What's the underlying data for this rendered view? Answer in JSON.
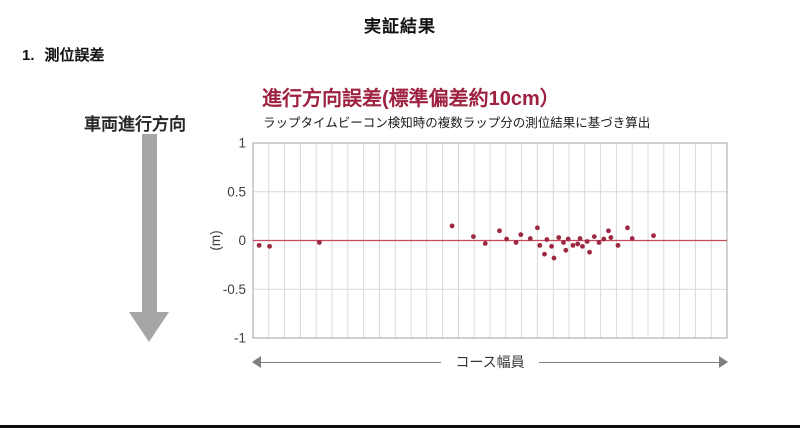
{
  "page": {
    "title": "実証結果",
    "list_number": "1.",
    "list_label": "測位誤差",
    "direction_label": "車両進行方向"
  },
  "chart_data": {
    "type": "scatter",
    "title": "進行方向誤差(標準偏差約10cm）",
    "subtitle": "ラップタイムビーコン検知時の複数ラップ分の測位結果に基づき算出",
    "ylabel": "(m)",
    "xlabel": "コース幅員",
    "ylim": [
      -1,
      1
    ],
    "yticks": [
      1,
      0.5,
      0,
      -0.5,
      -1
    ],
    "x_range": [
      0,
      1
    ],
    "x_gridline_count": 30,
    "grid": true,
    "zero_line": true,
    "colors": {
      "point": "#9e2742",
      "zero_line": "#c9485b",
      "grid": "#d9d9d9",
      "border": "#a6a6a6",
      "tick_text": "#404040"
    },
    "points": [
      [
        0.013,
        -0.05
      ],
      [
        0.035,
        -0.06
      ],
      [
        0.14,
        -0.02
      ],
      [
        0.42,
        0.15
      ],
      [
        0.465,
        0.04
      ],
      [
        0.49,
        -0.03
      ],
      [
        0.52,
        0.1
      ],
      [
        0.535,
        0.015
      ],
      [
        0.555,
        -0.02
      ],
      [
        0.565,
        0.06
      ],
      [
        0.585,
        0.02
      ],
      [
        0.6,
        0.13
      ],
      [
        0.605,
        -0.05
      ],
      [
        0.615,
        -0.14
      ],
      [
        0.62,
        0.01
      ],
      [
        0.63,
        -0.06
      ],
      [
        0.635,
        -0.18
      ],
      [
        0.645,
        0.03
      ],
      [
        0.655,
        -0.02
      ],
      [
        0.66,
        -0.1
      ],
      [
        0.665,
        0.015
      ],
      [
        0.675,
        -0.05
      ],
      [
        0.685,
        -0.035
      ],
      [
        0.69,
        0.02
      ],
      [
        0.695,
        -0.06
      ],
      [
        0.705,
        -0.01
      ],
      [
        0.71,
        -0.12
      ],
      [
        0.72,
        0.04
      ],
      [
        0.73,
        -0.02
      ],
      [
        0.74,
        0.015
      ],
      [
        0.75,
        0.1
      ],
      [
        0.755,
        0.03
      ],
      [
        0.77,
        -0.05
      ],
      [
        0.79,
        0.13
      ],
      [
        0.8,
        0.02
      ],
      [
        0.845,
        0.05
      ]
    ]
  }
}
